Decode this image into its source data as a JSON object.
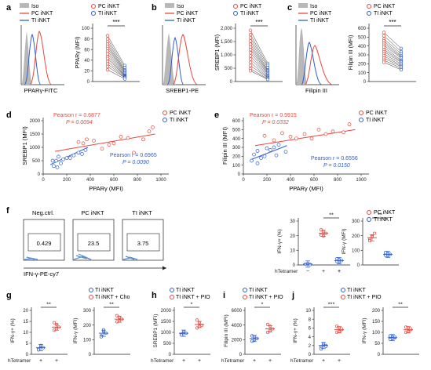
{
  "colors": {
    "pc": "#e8473b",
    "ti": "#2f5fd0",
    "iso": "#b8b8b8",
    "axis": "#222222"
  },
  "panels": {
    "a": {
      "letter": "a",
      "legend": [
        "Iso",
        "PC iNKT",
        "TI iNKT"
      ],
      "histogram_xlabel": "PPARγ-FITC",
      "dot_legend": [
        "PC iNKT",
        "TI iNKT"
      ],
      "ylabel": "PPARγ (MFI)",
      "sig": "***",
      "yticks": [
        "0",
        "20",
        "40",
        "60",
        "80",
        "100"
      ]
    },
    "b": {
      "letter": "b",
      "legend": [
        "Iso",
        "PC iNKT",
        "TI iNKT"
      ],
      "histogram_xlabel": "SREBP1-PE",
      "dot_legend": [
        "PC iNKT",
        "TI iNKT"
      ],
      "ylabel": "SREBP1 (MFI)",
      "sig": "***",
      "yticks": [
        "0",
        "500",
        "1,000",
        "1,500",
        "2,000"
      ]
    },
    "c": {
      "letter": "c",
      "legend": [
        "Iso",
        "PC iNKT",
        "TI iNKT"
      ],
      "histogram_xlabel": "Filipin III",
      "dot_legend": [
        "PC iNKT",
        "TI iNKT"
      ],
      "ylabel": "Filipin III (MFI)",
      "sig": "***",
      "yticks": [
        "0",
        "100",
        "200",
        "300",
        "400",
        "500",
        "600"
      ]
    },
    "d": {
      "letter": "d",
      "legend": [
        "PC iNKT",
        "TI iNKT"
      ],
      "pc_stats": [
        "Pearson r = 0.6877",
        "P = 0.0094"
      ],
      "ti_stats": [
        "Pearson r = 0.6965",
        "P = 0.0090"
      ],
      "xlabel": "PPARγ (MFI)",
      "ylabel": "SREBP1 (MFI)",
      "xticks": [
        "0",
        "200",
        "400",
        "600",
        "800",
        "1000"
      ],
      "yticks": [
        "0",
        "500",
        "1000",
        "1500",
        "2000"
      ]
    },
    "e": {
      "letter": "e",
      "legend": [
        "PC iNKT",
        "TI iNKT"
      ],
      "pc_stats": [
        "Pearson r = 0.5915",
        "P = 0.0332"
      ],
      "ti_stats": [
        "Pearson r = 0.6556",
        "P = 0.0150"
      ],
      "xlabel": "PPARγ (MFI)",
      "ylabel": "Filipin III (MFI)",
      "xticks": [
        "0",
        "200",
        "400",
        "600",
        "800",
        "1000"
      ],
      "yticks": [
        "0",
        "100",
        "200",
        "300",
        "400",
        "500",
        "600"
      ]
    },
    "f": {
      "letter": "f",
      "flow_titles": [
        "Neg.ctrl.",
        "PC iNKT",
        "TI iNKT"
      ],
      "flow_values": [
        "0.429",
        "23.5",
        "3.75"
      ],
      "flow_xlabel": "IFN-γ-PE-cy7",
      "legend": [
        "PC iNKT",
        "TI iNKT"
      ],
      "plot1_ylabel": "IFN-γ+ (%)",
      "plot1_yticks": [
        "0",
        "10",
        "20",
        "30"
      ],
      "plot2_ylabel": "IFN-γ (MFI)",
      "plot2_yticks": [
        "0",
        "100",
        "200",
        "300"
      ],
      "sig": "**",
      "xcat_label": "hTetramer",
      "xcat_values": [
        "−",
        "+",
        "+"
      ]
    },
    "g": {
      "letter": "g",
      "legend": [
        "TI iNKT",
        "TI iNKT + Cho"
      ],
      "plot1_ylabel": "IFN-γ+ (%)",
      "plot1_yticks": [
        "0",
        "5",
        "10",
        "15",
        "20"
      ],
      "plot2_ylabel": "IFN-γ (MFI)",
      "plot2_yticks": [
        "0",
        "100",
        "200",
        "300"
      ],
      "sig": "**",
      "xcat_label": "hTetramer",
      "xcat_values": [
        "+",
        "+"
      ]
    },
    "h": {
      "letter": "h",
      "legend": [
        "TI iNKT",
        "TI iNKT + PIO"
      ],
      "ylabel": "SREBP1 (MFI)",
      "yticks": [
        "0",
        "500",
        "1000",
        "1500",
        "2000"
      ],
      "sig": "*",
      "xcat_label": "hTetramer",
      "xcat_values": [
        "+",
        "+"
      ]
    },
    "i": {
      "letter": "i",
      "legend": [
        "TI iNKT",
        "TI iNKT + PIO"
      ],
      "ylabel": "Filipin III (MFI)",
      "yticks": [
        "0",
        "2000",
        "4000",
        "6000"
      ],
      "sig": "*",
      "xcat_label": "hTetramer",
      "xcat_values": [
        "+",
        "+"
      ]
    },
    "j": {
      "letter": "j",
      "legend": [
        "TI iNKT",
        "TI iNKT + PIO"
      ],
      "plot1_ylabel": "IFN-γ+ (%)",
      "plot1_yticks": [
        "0",
        "2",
        "4",
        "6",
        "8",
        "10"
      ],
      "plot2_ylabel": "IFN-γ (MFI)",
      "plot2_yticks": [
        "0",
        "50",
        "100",
        "150",
        "200"
      ],
      "sig1": "***",
      "sig2": "**",
      "xcat_label": "hTetramer",
      "xcat_values": [
        "+",
        "+"
      ]
    }
  }
}
